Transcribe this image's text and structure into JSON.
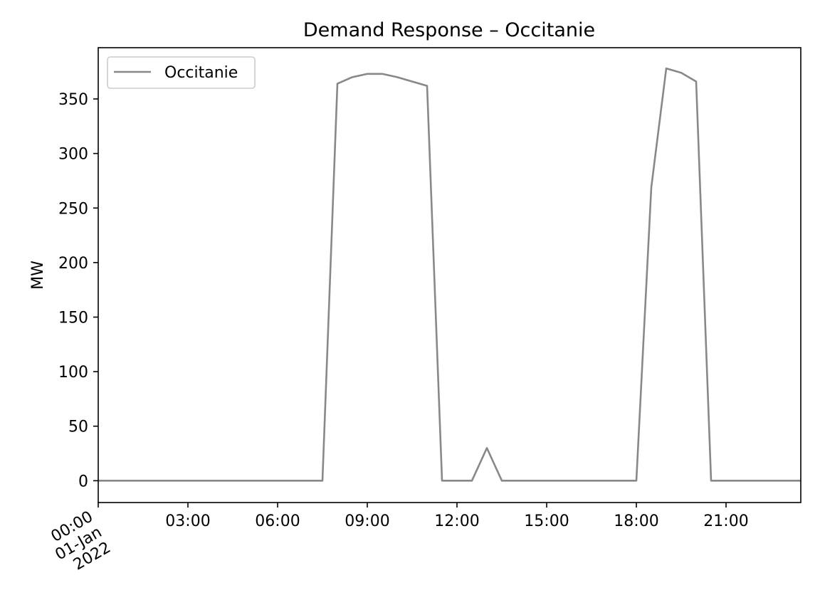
{
  "chart_data": {
    "type": "line",
    "title": "Demand Response – Occitanie",
    "xlabel": "",
    "ylabel": "MW",
    "x_unit": "hour of 2022-01-01",
    "xlim": [
      0,
      23.5
    ],
    "ylim": [
      -20,
      397
    ],
    "x_ticks": [
      {
        "value": 0,
        "lines": [
          "00:00",
          "01-Jan",
          "2022"
        ]
      },
      {
        "value": 3,
        "lines": [
          "03:00"
        ]
      },
      {
        "value": 6,
        "lines": [
          "06:00"
        ]
      },
      {
        "value": 9,
        "lines": [
          "09:00"
        ]
      },
      {
        "value": 12,
        "lines": [
          "12:00"
        ]
      },
      {
        "value": 15,
        "lines": [
          "15:00"
        ]
      },
      {
        "value": 18,
        "lines": [
          "18:00"
        ]
      },
      {
        "value": 21,
        "lines": [
          "21:00"
        ]
      }
    ],
    "y_ticks": [
      0,
      50,
      100,
      150,
      200,
      250,
      300,
      350
    ],
    "grid": false,
    "legend": {
      "placement": "upper-left",
      "entries": [
        "Occitanie"
      ]
    },
    "series": [
      {
        "name": "Occitanie",
        "color": "#888888",
        "x": [
          0,
          0.5,
          1,
          1.5,
          2,
          2.5,
          3,
          3.5,
          4,
          4.5,
          5,
          5.5,
          6,
          6.5,
          7,
          7.5,
          8,
          8.5,
          9,
          9.5,
          10,
          10.5,
          11,
          11.5,
          12,
          12.5,
          13,
          13.5,
          14,
          14.5,
          15,
          15.5,
          16,
          16.5,
          17,
          17.5,
          18,
          18.5,
          19,
          19.5,
          20,
          20.5,
          21,
          21.5,
          22,
          22.5,
          23,
          23.5
        ],
        "values": [
          0,
          0,
          0,
          0,
          0,
          0,
          0,
          0,
          0,
          0,
          0,
          0,
          0,
          0,
          0,
          0,
          364,
          370,
          373,
          373,
          370,
          366,
          362,
          0,
          0,
          0,
          30,
          0,
          0,
          0,
          0,
          0,
          0,
          0,
          0,
          0,
          0,
          269,
          378,
          374,
          366,
          0,
          0,
          0,
          0,
          0,
          0,
          0
        ]
      }
    ]
  }
}
